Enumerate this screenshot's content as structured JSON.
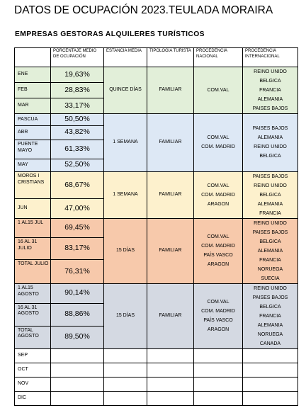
{
  "title": "DATOS DE OCUPACIÓN 2023.TEULADA MORAIRA",
  "subtitle": "EMPRESAS GESTORAS ALQUILERES TURÍSTICOS",
  "headers": {
    "mes": "",
    "porcentaje": "PORCENTAJE MEDIO DE OCUPACIÓN",
    "estancia": "ESTANCIA MEDIA",
    "tipologia": "TIPOLOGÍA TURISTA",
    "nacional": "PROCEDENCIA NACIONAL",
    "internacional": "PROCEDENCIA INTERNACIONAL"
  },
  "groups": [
    {
      "estancia": "QUINCE DÍAS",
      "tipologia": "FAMILIAR",
      "nacional": [
        "COM.VAL"
      ],
      "internacional": [
        "REINO UNIDO",
        "BELGICA",
        "FRANCIA",
        "ALEMANIA",
        "PAISES BAJOS"
      ],
      "rows": [
        {
          "mes": "ENE",
          "pct": "19,63%"
        },
        {
          "mes": "FEB",
          "pct": "28,83%"
        },
        {
          "mes": "MAR",
          "pct": "33,17%"
        }
      ]
    },
    {
      "estancia": "1 SEMANA",
      "tipologia": "FAMILIAR",
      "nacional": [
        "COM.VAL",
        "COM. MADRID"
      ],
      "internacional": [
        "PAISES BAJOS",
        "ALEMANIA",
        "REINO UNIDO",
        "BELGICA"
      ],
      "rows": [
        {
          "mes": "PASCUA",
          "pct": "50,50%"
        },
        {
          "mes": "ABR",
          "pct": "43,82%"
        },
        {
          "mes": "PUENTE MAYO",
          "pct": "61,33%"
        },
        {
          "mes": "MAY",
          "pct": "52,50%"
        }
      ]
    },
    {
      "estancia": "1 SEMANA",
      "tipologia": "FAMILIAR",
      "nacional": [
        "COM.VAL",
        "COM. MADRID",
        "ARAGON"
      ],
      "internacional": [
        "PAISES BAJOS",
        "REINO UNIDO",
        "BELGICA",
        "ALEMANIA",
        "FRANCIA"
      ],
      "rows": [
        {
          "mes": "MOROS I CRISTIANS",
          "pct": "68,67%"
        },
        {
          "mes": "JUN",
          "pct": "47,00%"
        }
      ]
    },
    {
      "estancia": "15 DÍAS",
      "tipologia": "FAMILIAR",
      "nacional": [
        "COM.VAL",
        "COM. MADRID",
        "PAÍS VASCO",
        "ARAGON"
      ],
      "internacional": [
        "REINO UNIDO",
        "PAISES BAJOS",
        "BELGICA",
        "ALEMANIA",
        "FRANCIA",
        "NORUEGA",
        "SUECIA"
      ],
      "rows": [
        {
          "mes": "1 AL15 JUL",
          "pct": "69,45%"
        },
        {
          "mes": "16 AL 31 JULIO",
          "pct": "83,17%"
        },
        {
          "mes": "TOTAL JULIO",
          "pct": "76,31%"
        }
      ]
    },
    {
      "estancia": "15 DÍAS",
      "tipologia": "FAMILIAR",
      "nacional": [
        "COM.VAL",
        "COM. MADRID",
        "PAÍS VASCO",
        "ARAGON"
      ],
      "internacional": [
        "REINO UNIDO",
        "PAISES BAJOS",
        "BELGICA",
        "FRANCIA",
        "ALEMANIA",
        "NORUEGA",
        "CANADA"
      ],
      "rows": [
        {
          "mes": "1 AL15 AGOSTO",
          "pct": "90,14%"
        },
        {
          "mes": "16 AL 31 AGOSTO",
          "pct": "88,86%"
        },
        {
          "mes": "TOTAL AGOSTO",
          "pct": "89,50%"
        }
      ]
    }
  ],
  "empty_months": [
    "SEP",
    "OCT",
    "NOV",
    "DIC"
  ],
  "colors": {
    "group_1": "#e2efd9",
    "group_2": "#dde8f5",
    "group_3": "#fdf1cd",
    "group_4": "#f7c9ab",
    "group_5": "#d4d9e2"
  }
}
